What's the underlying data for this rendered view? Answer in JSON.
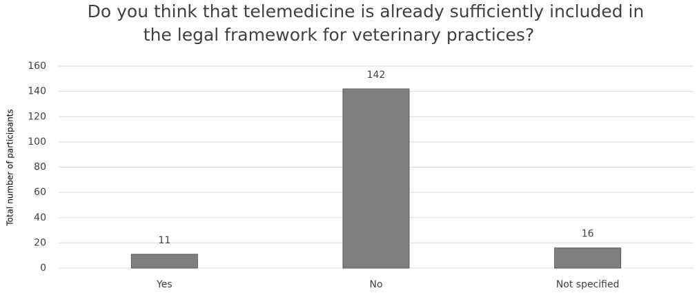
{
  "chart_data": {
    "type": "bar",
    "title": [
      "Do you think that telemedicine is already sufficiently included in",
      "the legal framework for veterinary practices?"
    ],
    "y_label": "Total number of participants",
    "categories": [
      "Yes",
      "No",
      "Not specified"
    ],
    "values": [
      11,
      142,
      16
    ],
    "color": "#7f7f7f",
    "ylim": [
      0,
      160
    ],
    "yticks": [
      0,
      20,
      40,
      60,
      80,
      100,
      120,
      140,
      160
    ],
    "grid": true
  }
}
